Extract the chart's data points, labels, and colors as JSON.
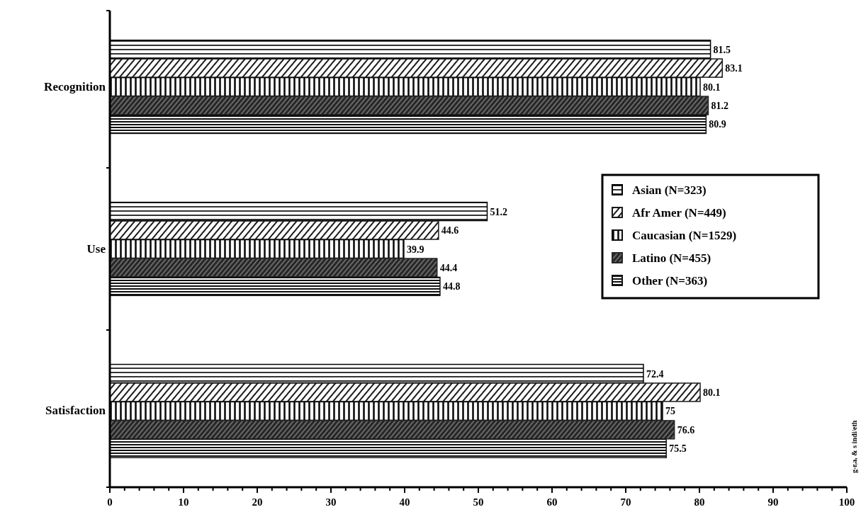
{
  "chart_data": {
    "type": "bar",
    "orientation": "horizontal",
    "categories": [
      "Recognition",
      "Use",
      "Satisfaction"
    ],
    "series": [
      {
        "name": "Asian (N=323)",
        "color": "#000000",
        "values": [
          81.5,
          51.2,
          72.4
        ]
      },
      {
        "name": "Afr Amer (N=449)",
        "color": "#1a1a1a",
        "values": [
          83.1,
          44.6,
          80.1
        ]
      },
      {
        "name": "Caucasian (N=1529)",
        "color": "#0d0d0d",
        "values": [
          80.1,
          39.9,
          75
        ]
      },
      {
        "name": "Latino (N=455)",
        "color": "#262626",
        "values": [
          81.2,
          44.4,
          76.6
        ]
      },
      {
        "name": "Other (N=363)",
        "color": "#121212",
        "values": [
          80.9,
          44.8,
          75.5
        ]
      }
    ],
    "xlim": [
      0,
      100
    ],
    "xticks": [
      0,
      {
        "value": 2,
        "label": null
      },
      {
        "value": 4,
        "label": null
      },
      {
        "value": 6,
        "label": null
      },
      {
        "value": 8,
        "label": null
      },
      10,
      {
        "value": 12,
        "label": null
      },
      {
        "value": 14,
        "label": null
      },
      {
        "value": 16,
        "label": null
      },
      {
        "value": 18,
        "label": null
      },
      20,
      {
        "value": 22,
        "label": null
      },
      {
        "value": 24,
        "label": null
      },
      {
        "value": 26,
        "label": null
      },
      {
        "value": 28,
        "label": null
      },
      30,
      {
        "value": 32,
        "label": null
      },
      {
        "value": 34,
        "label": null
      },
      {
        "value": 36,
        "label": null
      },
      {
        "value": 38,
        "label": null
      },
      40,
      {
        "value": 42,
        "label": null
      },
      {
        "value": 44,
        "label": null
      },
      {
        "value": 46,
        "label": null
      },
      {
        "value": 48,
        "label": null
      },
      50,
      {
        "value": 52,
        "label": null
      },
      {
        "value": 54,
        "label": null
      },
      {
        "value": 56,
        "label": null
      },
      {
        "value": 58,
        "label": null
      },
      60,
      {
        "value": 62,
        "label": null
      },
      {
        "value": 64,
        "label": null
      },
      {
        "value": 66,
        "label": null
      },
      {
        "value": 68,
        "label": null
      },
      70,
      {
        "value": 72,
        "label": null
      },
      {
        "value": 74,
        "label": null
      },
      {
        "value": 76,
        "label": null
      },
      {
        "value": 78,
        "label": null
      },
      80,
      {
        "value": 82,
        "label": null
      },
      {
        "value": 84,
        "label": null
      },
      {
        "value": 86,
        "label": null
      },
      {
        "value": 88,
        "label": null
      },
      90,
      {
        "value": 92,
        "label": null
      },
      {
        "value": 94,
        "label": null
      },
      {
        "value": 96,
        "label": null
      },
      {
        "value": 98,
        "label": null
      },
      100
    ],
    "data_labels": true,
    "legend": "right",
    "grid": false,
    "annotations": [
      "g-r,a, & s indi/eth"
    ]
  }
}
